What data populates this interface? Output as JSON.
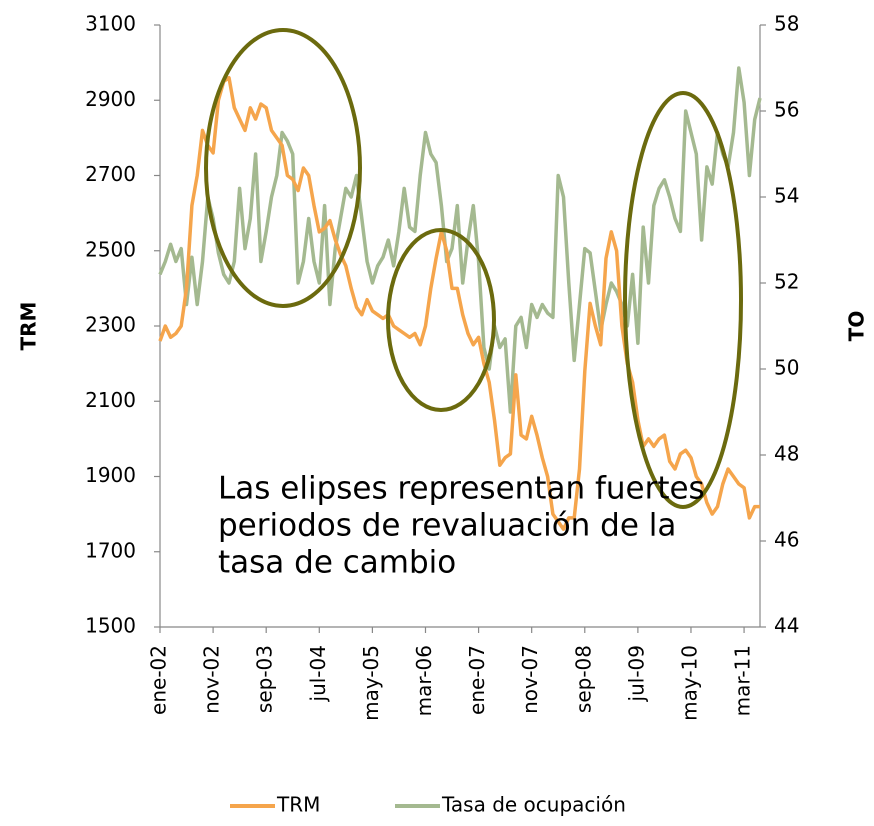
{
  "chart_data": {
    "type": "line",
    "annotation": [
      "Las elipses representan fuertes",
      "periodos de revaluación de la",
      "tasa de cambio"
    ],
    "ylabel": "TRM",
    "y2label": "TO",
    "categories": [
      "ene-02",
      null,
      null,
      null,
      null,
      null,
      null,
      null,
      null,
      null,
      "nov-02",
      null,
      null,
      null,
      null,
      null,
      null,
      null,
      null,
      null,
      "sep-03",
      null,
      null,
      null,
      null,
      null,
      null,
      null,
      null,
      null,
      "jul-04",
      null,
      null,
      null,
      null,
      null,
      null,
      null,
      null,
      null,
      "may-05",
      null,
      null,
      null,
      null,
      null,
      null,
      null,
      null,
      null,
      "mar-06",
      null,
      null,
      null,
      null,
      null,
      null,
      null,
      null,
      null,
      "ene-07",
      null,
      null,
      null,
      null,
      null,
      null,
      null,
      null,
      null,
      "nov-07",
      null,
      null,
      null,
      null,
      null,
      null,
      null,
      null,
      null,
      "sep-08",
      null,
      null,
      null,
      null,
      null,
      null,
      null,
      null,
      null,
      "jul-09",
      null,
      null,
      null,
      null,
      null,
      null,
      null,
      null,
      null,
      "may-10",
      null,
      null,
      null,
      null,
      null,
      null,
      null,
      null,
      null,
      "mar-11",
      null,
      null,
      null
    ],
    "ylim": [
      1500,
      3100
    ],
    "yticks": [
      1500,
      1700,
      1900,
      2100,
      2300,
      2500,
      2700,
      2900,
      3100
    ],
    "y2lim": [
      44,
      58
    ],
    "y2ticks": [
      44,
      46,
      48,
      50,
      52,
      54,
      56,
      58
    ],
    "series": [
      {
        "name": "TRM",
        "color": "#f5a54c",
        "values": [
          2260,
          2300,
          2270,
          2280,
          2300,
          2400,
          2620,
          2700,
          2820,
          2780,
          2760,
          2900,
          2950,
          2960,
          2880,
          2850,
          2820,
          2880,
          2850,
          2890,
          2880,
          2820,
          2800,
          2780,
          2700,
          2690,
          2660,
          2720,
          2700,
          2620,
          2550,
          2560,
          2580,
          2530,
          2490,
          2460,
          2400,
          2350,
          2330,
          2370,
          2340,
          2330,
          2320,
          2330,
          2300,
          2290,
          2280,
          2270,
          2280,
          2250,
          2300,
          2400,
          2480,
          2550,
          2500,
          2400,
          2400,
          2330,
          2280,
          2250,
          2270,
          2200,
          2150,
          2050,
          1930,
          1950,
          1960,
          2170,
          2010,
          2000,
          2060,
          2010,
          1950,
          1900,
          1800,
          1780,
          1760,
          1790,
          1790,
          1920,
          2180,
          2360,
          2300,
          2250,
          2480,
          2550,
          2500,
          2300,
          2200,
          2150,
          2050,
          1980,
          2000,
          1980,
          2000,
          2010,
          1940,
          1920,
          1960,
          1970,
          1950,
          1900,
          1880,
          1830,
          1800,
          1820,
          1880,
          1920,
          1900,
          1880,
          1870,
          1790,
          1820,
          1820
        ]
      },
      {
        "name": "Tasa de ocupación",
        "color": "#a4b990",
        "axis": "y2",
        "values": [
          52.2,
          52.5,
          52.9,
          52.5,
          52.8,
          51.5,
          52.6,
          51.5,
          52.5,
          54.0,
          53.5,
          52.7,
          52.2,
          52.0,
          52.5,
          54.2,
          52.8,
          53.5,
          55.0,
          52.5,
          53.2,
          54.0,
          54.5,
          55.5,
          55.3,
          55.0,
          52.0,
          52.5,
          53.5,
          52.5,
          52.0,
          53.8,
          51.5,
          52.8,
          53.5,
          54.2,
          54.0,
          54.5,
          53.5,
          52.5,
          52.0,
          52.4,
          52.6,
          53.0,
          52.4,
          53.2,
          54.2,
          53.3,
          53.2,
          54.5,
          55.5,
          55.0,
          54.8,
          53.8,
          52.5,
          52.8,
          53.8,
          52.0,
          53.0,
          53.8,
          52.5,
          50.5,
          50.0,
          51.0,
          50.5,
          50.7,
          49.0,
          51.0,
          51.2,
          50.5,
          51.5,
          51.2,
          51.5,
          51.3,
          51.2,
          54.5,
          54.0,
          52.0,
          50.2,
          51.5,
          52.8,
          52.7,
          51.8,
          50.9,
          51.5,
          52.0,
          51.8,
          51.5,
          51.0,
          52.2,
          50.6,
          53.3,
          52.0,
          53.8,
          54.2,
          54.4,
          54.0,
          53.5,
          53.2,
          56.0,
          55.5,
          55.0,
          53.0,
          54.7,
          54.3,
          55.5,
          55.0,
          54.7,
          55.5,
          57.0,
          56.2,
          54.5,
          55.8,
          56.3
        ]
      }
    ]
  }
}
